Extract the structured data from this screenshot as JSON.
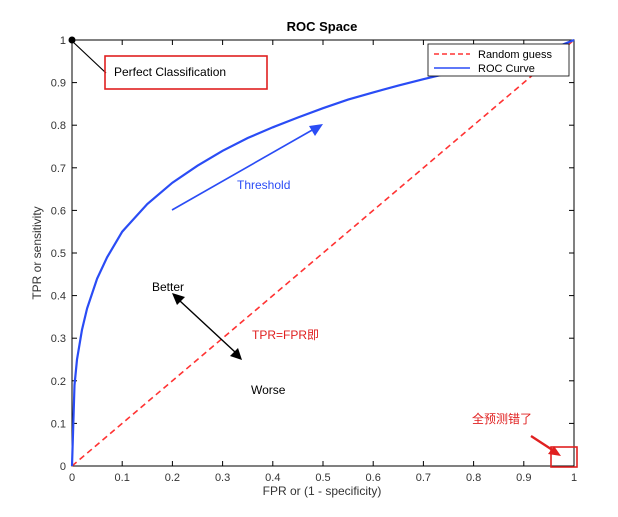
{
  "chart_data": {
    "type": "line",
    "title": "ROC Space",
    "xlabel": "FPR or (1 - specificity)",
    "ylabel": "TPR or sensitivity",
    "xlim": [
      0,
      1
    ],
    "ylim": [
      0,
      1
    ],
    "xticks": [
      "0",
      "0.1",
      "0.2",
      "0.3",
      "0.4",
      "0.5",
      "0.6",
      "0.7",
      "0.8",
      "0.9",
      "1"
    ],
    "yticks": [
      "0",
      "0.1",
      "0.2",
      "0.3",
      "0.4",
      "0.5",
      "0.6",
      "0.7",
      "0.8",
      "0.9",
      "1"
    ],
    "grid": false,
    "legend_position": "top-right",
    "series": [
      {
        "name": "Random guess",
        "color": "#ff3333",
        "style": "dashed",
        "x": [
          0,
          1
        ],
        "y": [
          0,
          1
        ]
      },
      {
        "name": "ROC Curve",
        "color": "#2a4cf5",
        "style": "solid",
        "x": [
          0,
          0.005,
          0.01,
          0.02,
          0.03,
          0.05,
          0.07,
          0.1,
          0.15,
          0.2,
          0.25,
          0.3,
          0.35,
          0.4,
          0.45,
          0.5,
          0.55,
          0.6,
          0.65,
          0.7,
          0.75,
          0.8,
          0.85,
          0.9,
          0.95,
          1.0
        ],
        "y": [
          0,
          0.19,
          0.25,
          0.32,
          0.37,
          0.44,
          0.49,
          0.55,
          0.615,
          0.665,
          0.705,
          0.74,
          0.77,
          0.795,
          0.818,
          0.84,
          0.86,
          0.877,
          0.893,
          0.908,
          0.922,
          0.936,
          0.949,
          0.962,
          0.976,
          1.0
        ]
      }
    ],
    "points": [
      {
        "name": "perfect-classification-point",
        "x": 0,
        "y": 1,
        "color": "#000000"
      }
    ],
    "annotations": {
      "perfect": "Perfect Classification",
      "threshold": "Threshold",
      "better": "Better",
      "worse": "Worse",
      "diagonal_note": "TPR=FPR即",
      "corner_note": "全预测错了"
    },
    "colors": {
      "axis": "#000000",
      "highlight_box": "#e02020",
      "red_text": "#e02020",
      "blue_text": "#2a4cf5"
    }
  }
}
